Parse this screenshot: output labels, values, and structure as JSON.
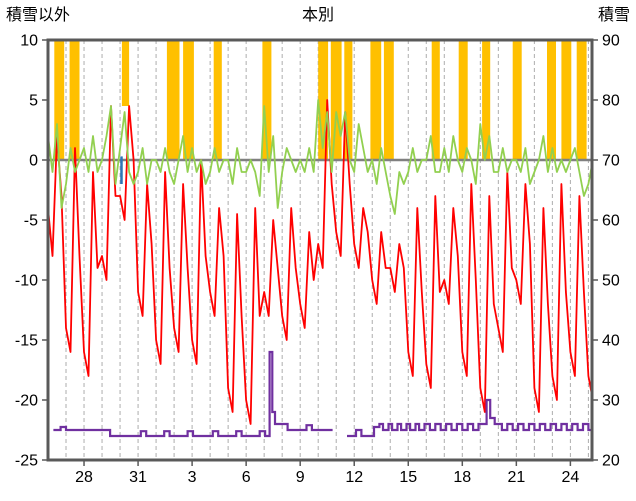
{
  "colors": {
    "bar": "#FFC000",
    "temp": "#FF0000",
    "green": "#92D050",
    "snow": "#7030A0",
    "blue": "#2E75B6",
    "zero_line": "#808080",
    "frame": "#595959",
    "grid": "#ADADAD",
    "text": "#000000"
  },
  "chart_data": {
    "type": "line",
    "title": "本別",
    "x_axis": {
      "t_min": 0,
      "t_max": 30.2,
      "grid_step_days": 1,
      "tick_ts": [
        2,
        5,
        8,
        11,
        14,
        17,
        20,
        23,
        26,
        29
      ],
      "tick_labels": [
        "28",
        "31",
        "3",
        "6",
        "9",
        "12",
        "15",
        "18",
        "21",
        "24"
      ]
    },
    "left_axis": {
      "title": "積雪以外",
      "min": -25,
      "max": 10,
      "ticks": [
        10,
        5,
        0,
        -5,
        -10,
        -15,
        -20,
        -25
      ]
    },
    "right_axis": {
      "title": "積雪",
      "min": 20,
      "max": 90,
      "ticks": [
        90,
        80,
        70,
        60,
        50,
        40,
        30,
        20
      ]
    },
    "series": {
      "sunshine_bars": {
        "axis": "left",
        "top": 10,
        "intervals": [
          [
            0.35,
            0.9,
            0
          ],
          [
            1.2,
            1.75,
            0
          ],
          [
            4.1,
            4.5,
            4.5
          ],
          [
            6.6,
            7.3,
            0
          ],
          [
            7.5,
            8.1,
            0
          ],
          [
            9.2,
            9.65,
            0
          ],
          [
            11.9,
            12.4,
            0
          ],
          [
            15.0,
            15.55,
            0
          ],
          [
            15.7,
            16.3,
            0
          ],
          [
            16.45,
            16.9,
            0
          ],
          [
            17.9,
            18.5,
            0
          ],
          [
            18.65,
            19.2,
            0
          ],
          [
            21.3,
            21.75,
            0
          ],
          [
            22.8,
            23.3,
            0
          ],
          [
            24.1,
            24.55,
            0
          ],
          [
            25.8,
            26.3,
            0
          ],
          [
            27.7,
            28.2,
            0
          ],
          [
            28.5,
            29.05,
            0
          ],
          [
            29.35,
            29.9,
            0
          ]
        ]
      },
      "temperature": {
        "axis": "left",
        "t0": 0,
        "dt": 0.25,
        "values": [
          -4,
          -8,
          2,
          -3,
          -14,
          -16,
          1,
          -8,
          -16,
          -18,
          -1,
          -9,
          -8,
          -10,
          4.5,
          -3,
          -3,
          -5,
          4.5,
          0,
          -11,
          -13,
          -2,
          -7,
          -15,
          -17,
          -1,
          -9,
          -14,
          -16,
          -2,
          -9,
          -15,
          -17,
          0,
          -8,
          -11,
          -13,
          -4,
          -8,
          -19,
          -21,
          -4.5,
          -13,
          -20,
          -22,
          -4,
          -13,
          -11,
          -13,
          -5,
          -9,
          -13,
          -15,
          -4,
          -9,
          -12,
          -14,
          -6,
          -10,
          -7,
          -9,
          5,
          -2,
          -6,
          -8,
          4,
          -2,
          -7,
          -9,
          -4,
          -6,
          -10,
          -12,
          -6,
          -9,
          -9,
          -11,
          -7,
          -9,
          -16,
          -18,
          -4,
          -11,
          -17,
          -19,
          -3,
          -11,
          -10,
          -12,
          -4,
          -8,
          -16,
          -18,
          -2,
          -10,
          -19,
          -21,
          -3,
          -12,
          -14,
          -16,
          -1,
          -9,
          -10,
          -12,
          -2,
          -7,
          -19,
          -21,
          -4,
          -12,
          -18,
          -20,
          -2,
          -11,
          -16,
          -18,
          -3,
          -11,
          -18,
          -20,
          -5,
          -7
        ]
      },
      "green_line": {
        "axis": "left",
        "t0": 0,
        "dt": 0.25,
        "values": [
          2,
          -1,
          3,
          -4,
          -2,
          1,
          -1,
          0,
          1,
          -1,
          2,
          -1,
          0,
          2,
          4.5,
          -2,
          1,
          4,
          -1,
          -2,
          -1,
          1,
          -2,
          0,
          0,
          -1,
          1,
          -1,
          -2,
          0,
          2,
          -1,
          1,
          -1,
          0,
          -2,
          -1,
          1,
          -1,
          0,
          0,
          -2,
          1,
          -1,
          -1,
          0,
          -1,
          -3,
          4.5,
          -1,
          2,
          -4,
          -1,
          1,
          0,
          -1,
          0,
          -1,
          1,
          -1,
          5,
          1,
          4,
          -1,
          4,
          2,
          4,
          0,
          -1,
          3,
          1,
          -1,
          0,
          -2,
          1,
          -1,
          -3,
          -4.5,
          -1,
          -2,
          -1,
          1,
          -1,
          0,
          0,
          2,
          -1,
          -1,
          1,
          -1,
          2,
          0,
          -1,
          1,
          0,
          -2,
          3,
          0,
          2,
          -1,
          -1,
          1,
          -1,
          0,
          0,
          -1,
          1,
          -2,
          -1,
          0,
          2,
          -1,
          1,
          -1,
          0,
          -1,
          0,
          1,
          -1,
          -3,
          -2,
          0,
          -3,
          -4
        ]
      },
      "snow_depth": {
        "axis": "right",
        "points": [
          [
            0.3,
            25
          ],
          [
            0.7,
            25.5
          ],
          [
            1.0,
            25
          ],
          [
            3.4,
            25
          ],
          [
            3.45,
            24
          ],
          [
            5.0,
            24
          ],
          [
            5.15,
            24.8
          ],
          [
            5.45,
            24
          ],
          [
            6.3,
            24
          ],
          [
            6.45,
            24.8
          ],
          [
            6.75,
            24
          ],
          [
            7.6,
            24
          ],
          [
            7.75,
            24.8
          ],
          [
            8.05,
            24
          ],
          [
            9.0,
            24
          ],
          [
            9.15,
            24.8
          ],
          [
            9.45,
            24
          ],
          [
            10.3,
            24
          ],
          [
            10.45,
            24.8
          ],
          [
            10.75,
            24
          ],
          [
            11.6,
            24
          ],
          [
            11.75,
            24.8
          ],
          [
            12.05,
            24
          ],
          [
            12.2,
            24
          ],
          [
            12.3,
            38
          ],
          [
            12.45,
            28
          ],
          [
            12.6,
            26
          ],
          [
            13.2,
            26
          ],
          [
            13.3,
            25
          ],
          [
            14.2,
            25
          ],
          [
            14.35,
            25.8
          ],
          [
            14.65,
            25
          ],
          [
            15.8,
            25
          ],
          null,
          [
            16.6,
            24
          ],
          [
            17.0,
            24
          ],
          [
            17.1,
            25
          ],
          [
            17.4,
            24
          ],
          [
            18.0,
            24
          ],
          [
            18.1,
            25.5
          ],
          [
            18.4,
            26
          ],
          [
            18.6,
            25
          ],
          [
            18.9,
            26
          ],
          [
            19.1,
            25
          ],
          [
            19.4,
            26
          ],
          [
            19.6,
            25
          ],
          [
            19.9,
            26
          ],
          [
            20.1,
            25
          ],
          [
            20.4,
            26
          ],
          [
            20.6,
            25
          ],
          [
            20.9,
            26
          ],
          [
            21.2,
            25
          ],
          [
            21.5,
            26
          ],
          [
            21.8,
            25
          ],
          [
            22.1,
            26
          ],
          [
            22.4,
            25
          ],
          [
            22.7,
            26
          ],
          [
            23.0,
            25
          ],
          [
            23.3,
            26
          ],
          [
            23.6,
            25
          ],
          [
            23.9,
            26
          ],
          [
            24.2,
            26
          ],
          [
            24.35,
            30
          ],
          [
            24.55,
            27
          ],
          [
            24.8,
            26
          ],
          [
            25.2,
            25
          ],
          [
            25.5,
            26
          ],
          [
            25.8,
            25
          ],
          [
            26.1,
            26
          ],
          [
            26.4,
            25
          ],
          [
            26.7,
            26
          ],
          [
            27.0,
            25
          ],
          [
            27.3,
            26
          ],
          [
            27.6,
            25
          ],
          [
            27.9,
            26
          ],
          [
            28.2,
            25
          ],
          [
            28.5,
            26
          ],
          [
            28.8,
            25
          ],
          [
            29.1,
            26
          ],
          [
            29.4,
            25
          ],
          [
            29.7,
            26
          ],
          [
            30.0,
            25
          ],
          [
            30.2,
            25
          ]
        ]
      },
      "blue_marks": {
        "axis": "left",
        "segments": [
          [
            4.08,
            0.3,
            -2.0
          ]
        ]
      }
    }
  }
}
